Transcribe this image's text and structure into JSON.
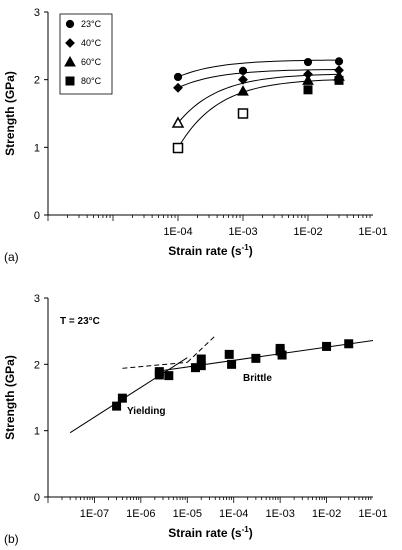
{
  "chart_data": [
    {
      "type": "scatter",
      "panel_label": "(a)",
      "xlabel_main": "Strain rate (s",
      "xlabel_sup": "-1",
      "xlabel_tail": ")",
      "ylabel": "Strength (GPa)",
      "x_scale": "log",
      "xlim": [
        1e-06,
        0.1
      ],
      "ylim": [
        0,
        3
      ],
      "x_ticks": [
        {
          "value": 0.0001,
          "label": "1E-04"
        },
        {
          "value": 0.001,
          "label": "1E-03"
        },
        {
          "value": 0.01,
          "label": "1E-02"
        },
        {
          "value": 0.1,
          "label": "1E-01"
        }
      ],
      "y_ticks": [
        {
          "value": 0,
          "label": "0"
        },
        {
          "value": 1,
          "label": "1"
        },
        {
          "value": 2,
          "label": "2"
        },
        {
          "value": 3,
          "label": "3"
        }
      ],
      "legend_position": "top-left",
      "series": [
        {
          "name": "23°C",
          "marker": "circle",
          "filled": true,
          "x": [
            0.0001,
            0.001,
            0.01,
            0.03
          ],
          "y": [
            2.04,
            2.13,
            2.26,
            2.27
          ],
          "fit": {
            "x": [
              0.0001,
              0.03
            ],
            "y0": 2.04,
            "y1": 2.29
          }
        },
        {
          "name": "40°C",
          "marker": "diamond",
          "filled": true,
          "x": [
            0.0001,
            0.001,
            0.01,
            0.03
          ],
          "y": [
            1.88,
            2.0,
            2.08,
            2.14
          ],
          "fit": {
            "x": [
              0.0001,
              0.03
            ],
            "y0": 1.88,
            "y1": 2.15
          }
        },
        {
          "name": "60°C",
          "marker": "triangle",
          "filled": true,
          "open_points": [
            {
              "x": 0.0001,
              "y": 1.36
            }
          ],
          "x": [
            0.001,
            0.01,
            0.03
          ],
          "y": [
            1.83,
            1.99,
            2.05
          ],
          "fit": {
            "x": [
              0.0001,
              0.03
            ],
            "y0": 1.36,
            "y1": 2.08
          }
        },
        {
          "name": "80°C",
          "marker": "square",
          "filled": true,
          "open_points": [
            {
              "x": 0.0001,
              "y": 0.99
            },
            {
              "x": 0.001,
              "y": 1.5
            }
          ],
          "x": [
            0.01,
            0.03
          ],
          "y": [
            1.85,
            1.99
          ],
          "fit": {
            "x": [
              0.0001,
              0.03
            ],
            "y0": 0.99,
            "y1": 2.0
          }
        }
      ]
    },
    {
      "type": "scatter",
      "panel_label": "(b)",
      "xlabel_main": "Strain rate (s",
      "xlabel_sup": "-1",
      "xlabel_tail": ")",
      "ylabel": "Strength (GPa)",
      "x_scale": "log",
      "xlim": [
        1e-08,
        0.1
      ],
      "ylim": [
        0,
        3
      ],
      "x_ticks": [
        {
          "value": 1e-07,
          "label": "1E-07"
        },
        {
          "value": 1e-06,
          "label": "1E-06"
        },
        {
          "value": 1e-05,
          "label": "1E-05"
        },
        {
          "value": 0.0001,
          "label": "1E-04"
        },
        {
          "value": 0.001,
          "label": "1E-03"
        },
        {
          "value": 0.01,
          "label": "1E-02"
        },
        {
          "value": 0.1,
          "label": "1E-01"
        }
      ],
      "y_ticks": [
        {
          "value": 0,
          "label": "0"
        },
        {
          "value": 1,
          "label": "1"
        },
        {
          "value": 2,
          "label": "2"
        },
        {
          "value": 3,
          "label": "3"
        }
      ],
      "annotations": {
        "temperature": "T = 23°C",
        "yielding": "Yielding",
        "brittle": "Brittle"
      },
      "points": {
        "x": [
          3e-07,
          4e-07,
          2.5e-06,
          2.5e-06,
          4e-06,
          1.5e-05,
          2e-05,
          2e-05,
          8e-05,
          9e-05,
          0.0003,
          0.001,
          0.001,
          0.0011,
          0.01,
          0.03
        ],
        "y": [
          1.37,
          1.49,
          1.84,
          1.89,
          1.83,
          1.95,
          1.98,
          2.08,
          2.15,
          2.0,
          2.09,
          2.24,
          2.2,
          2.14,
          2.27,
          2.31
        ]
      },
      "fits": [
        {
          "style": "solid",
          "x": [
            3e-08,
            1e-05
          ],
          "y": [
            0.97,
            2.1
          ]
        },
        {
          "style": "solid",
          "x": [
            2e-06,
            0.1
          ],
          "y": [
            1.89,
            2.36
          ]
        },
        {
          "style": "dashed",
          "x": [
            4e-07,
            1e-05
          ],
          "y": [
            1.94,
            2.03
          ]
        },
        {
          "style": "dashed",
          "x": [
            1e-05,
            4e-05
          ],
          "y": [
            2.03,
            2.43
          ]
        }
      ]
    }
  ]
}
